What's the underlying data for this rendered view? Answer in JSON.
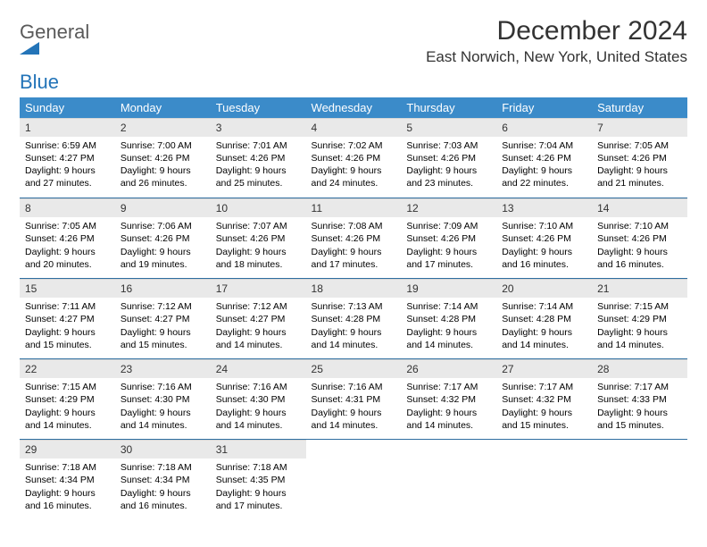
{
  "brand": {
    "word1": "General",
    "word2": "Blue"
  },
  "title": "December 2024",
  "location": "East Norwich, New York, United States",
  "header_bg": "#3b8bc9",
  "row_divider": "#2f6ea0",
  "daynum_bg": "#e9e9e9",
  "weekdays": [
    "Sunday",
    "Monday",
    "Tuesday",
    "Wednesday",
    "Thursday",
    "Friday",
    "Saturday"
  ],
  "weeks": [
    [
      {
        "n": "1",
        "sr": "6:59 AM",
        "ss": "4:27 PM",
        "dh": "9",
        "dm": "27"
      },
      {
        "n": "2",
        "sr": "7:00 AM",
        "ss": "4:26 PM",
        "dh": "9",
        "dm": "26"
      },
      {
        "n": "3",
        "sr": "7:01 AM",
        "ss": "4:26 PM",
        "dh": "9",
        "dm": "25"
      },
      {
        "n": "4",
        "sr": "7:02 AM",
        "ss": "4:26 PM",
        "dh": "9",
        "dm": "24"
      },
      {
        "n": "5",
        "sr": "7:03 AM",
        "ss": "4:26 PM",
        "dh": "9",
        "dm": "23"
      },
      {
        "n": "6",
        "sr": "7:04 AM",
        "ss": "4:26 PM",
        "dh": "9",
        "dm": "22"
      },
      {
        "n": "7",
        "sr": "7:05 AM",
        "ss": "4:26 PM",
        "dh": "9",
        "dm": "21"
      }
    ],
    [
      {
        "n": "8",
        "sr": "7:05 AM",
        "ss": "4:26 PM",
        "dh": "9",
        "dm": "20"
      },
      {
        "n": "9",
        "sr": "7:06 AM",
        "ss": "4:26 PM",
        "dh": "9",
        "dm": "19"
      },
      {
        "n": "10",
        "sr": "7:07 AM",
        "ss": "4:26 PM",
        "dh": "9",
        "dm": "18"
      },
      {
        "n": "11",
        "sr": "7:08 AM",
        "ss": "4:26 PM",
        "dh": "9",
        "dm": "17"
      },
      {
        "n": "12",
        "sr": "7:09 AM",
        "ss": "4:26 PM",
        "dh": "9",
        "dm": "17"
      },
      {
        "n": "13",
        "sr": "7:10 AM",
        "ss": "4:26 PM",
        "dh": "9",
        "dm": "16"
      },
      {
        "n": "14",
        "sr": "7:10 AM",
        "ss": "4:26 PM",
        "dh": "9",
        "dm": "16"
      }
    ],
    [
      {
        "n": "15",
        "sr": "7:11 AM",
        "ss": "4:27 PM",
        "dh": "9",
        "dm": "15"
      },
      {
        "n": "16",
        "sr": "7:12 AM",
        "ss": "4:27 PM",
        "dh": "9",
        "dm": "15"
      },
      {
        "n": "17",
        "sr": "7:12 AM",
        "ss": "4:27 PM",
        "dh": "9",
        "dm": "14"
      },
      {
        "n": "18",
        "sr": "7:13 AM",
        "ss": "4:28 PM",
        "dh": "9",
        "dm": "14"
      },
      {
        "n": "19",
        "sr": "7:14 AM",
        "ss": "4:28 PM",
        "dh": "9",
        "dm": "14"
      },
      {
        "n": "20",
        "sr": "7:14 AM",
        "ss": "4:28 PM",
        "dh": "9",
        "dm": "14"
      },
      {
        "n": "21",
        "sr": "7:15 AM",
        "ss": "4:29 PM",
        "dh": "9",
        "dm": "14"
      }
    ],
    [
      {
        "n": "22",
        "sr": "7:15 AM",
        "ss": "4:29 PM",
        "dh": "9",
        "dm": "14"
      },
      {
        "n": "23",
        "sr": "7:16 AM",
        "ss": "4:30 PM",
        "dh": "9",
        "dm": "14"
      },
      {
        "n": "24",
        "sr": "7:16 AM",
        "ss": "4:30 PM",
        "dh": "9",
        "dm": "14"
      },
      {
        "n": "25",
        "sr": "7:16 AM",
        "ss": "4:31 PM",
        "dh": "9",
        "dm": "14"
      },
      {
        "n": "26",
        "sr": "7:17 AM",
        "ss": "4:32 PM",
        "dh": "9",
        "dm": "14"
      },
      {
        "n": "27",
        "sr": "7:17 AM",
        "ss": "4:32 PM",
        "dh": "9",
        "dm": "15"
      },
      {
        "n": "28",
        "sr": "7:17 AM",
        "ss": "4:33 PM",
        "dh": "9",
        "dm": "15"
      }
    ],
    [
      {
        "n": "29",
        "sr": "7:18 AM",
        "ss": "4:34 PM",
        "dh": "9",
        "dm": "16"
      },
      {
        "n": "30",
        "sr": "7:18 AM",
        "ss": "4:34 PM",
        "dh": "9",
        "dm": "16"
      },
      {
        "n": "31",
        "sr": "7:18 AM",
        "ss": "4:35 PM",
        "dh": "9",
        "dm": "17"
      },
      {
        "empty": true
      },
      {
        "empty": true
      },
      {
        "empty": true
      },
      {
        "empty": true
      }
    ]
  ],
  "labels": {
    "sunrise": "Sunrise:",
    "sunset": "Sunset:",
    "daylight": "Daylight:",
    "hours": "hours",
    "and": "and",
    "minutes": "minutes."
  }
}
